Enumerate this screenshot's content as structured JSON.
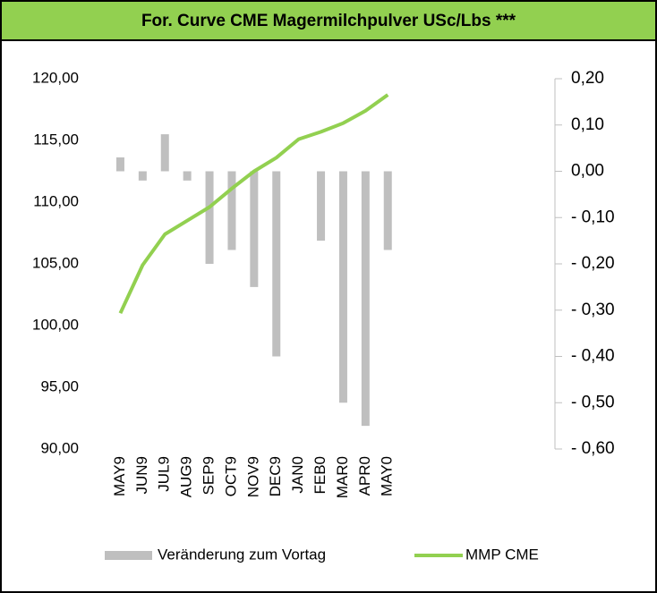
{
  "chart_data": {
    "type": "bar_line",
    "title": "For. Curve CME Magermilchpulver USc/Lbs ***",
    "categories": [
      "MAY9",
      "JUN9",
      "JUL9",
      "AUG9",
      "SEP9",
      "OCT9",
      "NOV9",
      "DEC9",
      "JAN0",
      "FEB0",
      "MAR0",
      "APR0",
      "MAY0"
    ],
    "series": [
      {
        "name": "Veränderung zum Vortag",
        "type": "bar",
        "axis": "y2",
        "color": "#bfbfbf",
        "values": [
          0.03,
          -0.02,
          0.08,
          -0.02,
          -0.2,
          -0.17,
          -0.25,
          -0.4,
          0,
          -0.15,
          -0.5,
          -0.55,
          -0.17
        ]
      },
      {
        "name": "MMP CME",
        "type": "line",
        "axis": "y",
        "color": "#92d050",
        "values": [
          101.0,
          104.9,
          107.4,
          108.5,
          109.6,
          111.1,
          112.5,
          113.6,
          115.1,
          115.7,
          116.4,
          117.4,
          118.7
        ]
      }
    ],
    "ylim": [
      90,
      120
    ],
    "yticks": [
      {
        "value": 120,
        "label": "120,00"
      },
      {
        "value": 115,
        "label": "115,00"
      },
      {
        "value": 110,
        "label": "110,00"
      },
      {
        "value": 105,
        "label": "105,00"
      },
      {
        "value": 100,
        "label": "100,00"
      },
      {
        "value": 95,
        "label": "95,00"
      },
      {
        "value": 90,
        "label": "90,00"
      }
    ],
    "y2lim": [
      -0.6,
      0.2
    ],
    "y2ticks": [
      {
        "value": 0.2,
        "label": "0,20"
      },
      {
        "value": 0.1,
        "label": "0,10"
      },
      {
        "value": 0,
        "label": "0,00"
      },
      {
        "value": -0.1,
        "label": "- 0,10"
      },
      {
        "value": -0.2,
        "label": "- 0,20"
      },
      {
        "value": -0.3,
        "label": "- 0,30"
      },
      {
        "value": -0.4,
        "label": "- 0,40"
      },
      {
        "value": -0.5,
        "label": "- 0,50"
      },
      {
        "value": -0.6,
        "label": "- 0,60"
      }
    ],
    "y2tick_colors": {
      "positive": "#008000",
      "negative": "#ff0000"
    },
    "title_background": "#92d050",
    "legend": "bottom"
  }
}
